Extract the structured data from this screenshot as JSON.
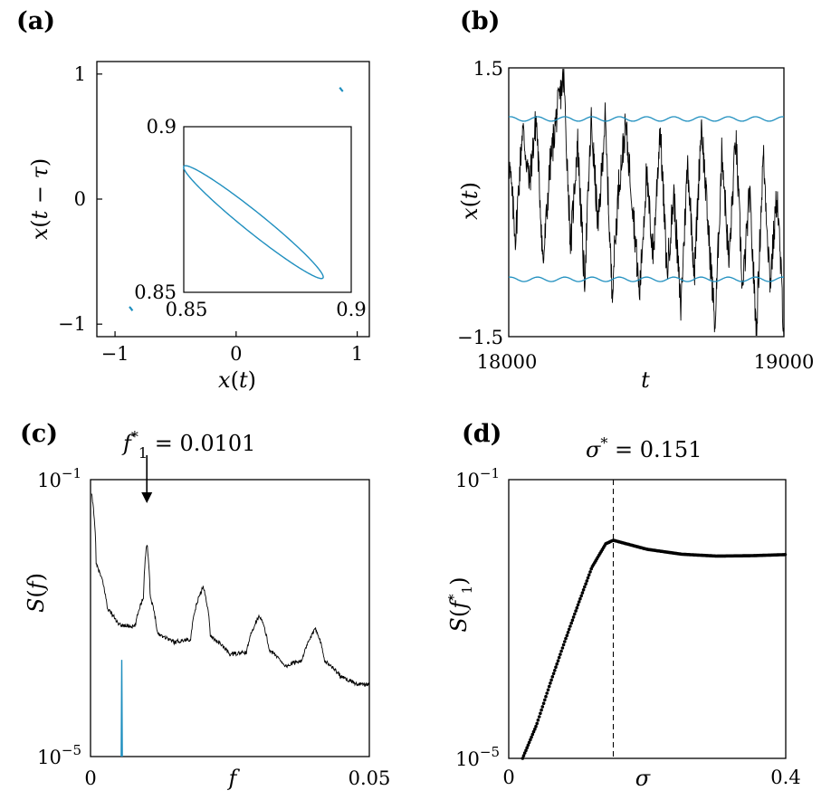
{
  "chart_data": [
    {
      "panel": "(a)",
      "type": "scatter",
      "xlabel": "x(t)",
      "ylabel": "x(t − τ)",
      "xlim": [
        -1.15,
        1.1
      ],
      "ylim": [
        -1.1,
        1.1
      ],
      "xticks": [
        {
          "v": -1,
          "label": "−1"
        },
        {
          "v": 0,
          "label": "0"
        },
        {
          "v": 1,
          "label": "1"
        }
      ],
      "yticks": [
        {
          "v": -1,
          "label": "−1"
        },
        {
          "v": 0,
          "label": "0"
        },
        {
          "v": 1,
          "label": "1"
        }
      ],
      "series": [
        {
          "name": "orbit-upper",
          "color": "#1f8fbf",
          "x": [
            0.855,
            0.862,
            0.868,
            0.875,
            0.882
          ],
          "y": [
            0.892,
            0.884,
            0.876,
            0.868,
            0.862
          ]
        },
        {
          "name": "orbit-lower",
          "color": "#1f8fbf",
          "x": [
            -0.882,
            -0.875,
            -0.868,
            -0.862,
            -0.855
          ],
          "y": [
            -0.862,
            -0.868,
            -0.876,
            -0.884,
            -0.892
          ]
        }
      ],
      "inset": {
        "type": "line",
        "xlim": [
          0.85,
          0.9
        ],
        "ylim": [
          0.85,
          0.9
        ],
        "xticks": [
          {
            "v": 0.85,
            "label": "0.85"
          },
          {
            "v": 0.9,
            "label": "0.9"
          }
        ],
        "yticks": [
          {
            "v": 0.85,
            "label": "0.85"
          },
          {
            "v": 0.9,
            "label": "0.9"
          }
        ],
        "ellipse": {
          "cx": 0.8708,
          "cy": 0.8712,
          "a": 0.02675,
          "b": 0.00302,
          "angle_deg": -39.1
        },
        "color": "#1f8fbf"
      }
    },
    {
      "panel": "(b)",
      "type": "line",
      "xlabel": "t",
      "ylabel": "x(t)",
      "xlim": [
        18000,
        19000
      ],
      "ylim": [
        -1.5,
        1.5
      ],
      "xticks": [
        {
          "v": 18000,
          "label": "18000"
        },
        {
          "v": 19000,
          "label": "19000"
        }
      ],
      "yticks": [
        {
          "v": 1.5,
          "label": "1.5"
        },
        {
          "v": -1.5,
          "label": "−1.5"
        }
      ],
      "series": [
        {
          "name": "noisy x(t)",
          "color": "#000000",
          "x": [
            18000,
            18025,
            18050,
            18075,
            18100,
            18125,
            18150,
            18175,
            18200,
            18225,
            18250,
            18275,
            18300,
            18325,
            18350,
            18375,
            18400,
            18425,
            18450,
            18475,
            18500,
            18525,
            18550,
            18575,
            18600,
            18625,
            18650,
            18675,
            18700,
            18725,
            18750,
            18775,
            18800,
            18825,
            18850,
            18875,
            18900,
            18925,
            18950,
            18975,
            19000
          ],
          "y": [
            0.5,
            -0.4,
            0.85,
            0.2,
            0.95,
            -0.7,
            0.4,
            1.0,
            1.4,
            -0.5,
            0.7,
            -0.9,
            0.9,
            -0.3,
            0.95,
            -1.0,
            0.2,
            0.85,
            0.0,
            -1.05,
            0.3,
            -0.6,
            0.85,
            -0.8,
            0.1,
            -1.2,
            0.45,
            -0.8,
            0.9,
            -0.3,
            -1.4,
            0.6,
            -0.7,
            0.75,
            -1.0,
            0.1,
            -1.45,
            0.55,
            -0.9,
            0.1,
            -1.45
          ]
        },
        {
          "name": "upper periodic orbit",
          "color": "#1f8fbf",
          "mean": 0.93,
          "amp": 0.025,
          "period": 99
        },
        {
          "name": "lower periodic orbit",
          "color": "#1f8fbf",
          "mean": -0.86,
          "amp": 0.025,
          "period": 99
        }
      ]
    },
    {
      "panel": "(c)",
      "type": "line",
      "xlabel": "f",
      "ylabel": "S(f)",
      "xscale": "linear",
      "yscale": "log",
      "xlim": [
        0,
        0.05
      ],
      "ylim": [
        1e-05,
        0.1
      ],
      "xticks": [
        {
          "v": 0,
          "label": "0"
        },
        {
          "v": 0.05,
          "label": "0.05"
        }
      ],
      "yticks": [
        {
          "v": 0.1,
          "label": "10",
          "exp": "−1"
        },
        {
          "v": 1e-05,
          "label": "10",
          "exp": "−5"
        }
      ],
      "annotation": {
        "text_pre": "f",
        "sub": "1",
        "sup": "*",
        "text_post": " = 0.0101",
        "at_f": 0.0101
      },
      "series": [
        {
          "name": "noisy spectrum",
          "color": "#000000",
          "x": [
            0.0002,
            0.001,
            0.003,
            0.005,
            0.008,
            0.0095,
            0.0101,
            0.0107,
            0.012,
            0.015,
            0.018,
            0.0202,
            0.0215,
            0.025,
            0.028,
            0.0303,
            0.032,
            0.035,
            0.038,
            0.0404,
            0.042,
            0.045,
            0.048,
            0.05
          ],
          "y": [
            0.06,
            0.006,
            0.0014,
            0.0008,
            0.00075,
            0.002,
            0.012,
            0.002,
            0.0006,
            0.00045,
            0.0005,
            0.0028,
            0.00055,
            0.0003,
            0.00032,
            0.0011,
            0.00035,
            0.0002,
            0.00025,
            0.0007,
            0.00024,
            0.00014,
            0.00011,
            0.00011
          ]
        },
        {
          "name": "periodic orbit spectrum",
          "color": "#1f8fbf",
          "x": [
            0.0055,
            0.0056,
            0.0057
          ],
          "y": [
            1e-05,
            0.00025,
            1e-05
          ]
        }
      ]
    },
    {
      "panel": "(d)",
      "type": "scatter",
      "xlabel": "σ",
      "ylabel": "S(f₁*)",
      "yscale": "log",
      "xlim": [
        0,
        0.4
      ],
      "ylim": [
        1e-05,
        0.1
      ],
      "xticks": [
        {
          "v": 0,
          "label": "0"
        },
        {
          "v": 0.4,
          "label": "0.4"
        }
      ],
      "yticks": [
        {
          "v": 0.1,
          "label": "10",
          "exp": "−1"
        },
        {
          "v": 1e-05,
          "label": "10",
          "exp": "−5"
        }
      ],
      "annotation": {
        "text_pre": "σ",
        "sup": "*",
        "text_post": " = 0.151",
        "at_sigma": 0.151
      },
      "series": [
        {
          "name": "S(f1*) vs sigma",
          "color": "#000000",
          "x": [
            0.02,
            0.04,
            0.06,
            0.08,
            0.1,
            0.12,
            0.14,
            0.151,
            0.17,
            0.2,
            0.25,
            0.3,
            0.35,
            0.4
          ],
          "y": [
            1e-05,
            3e-05,
            0.00012,
            0.00045,
            0.0016,
            0.0055,
            0.012,
            0.0135,
            0.012,
            0.01,
            0.0085,
            0.008,
            0.0081,
            0.0084
          ]
        }
      ]
    }
  ]
}
